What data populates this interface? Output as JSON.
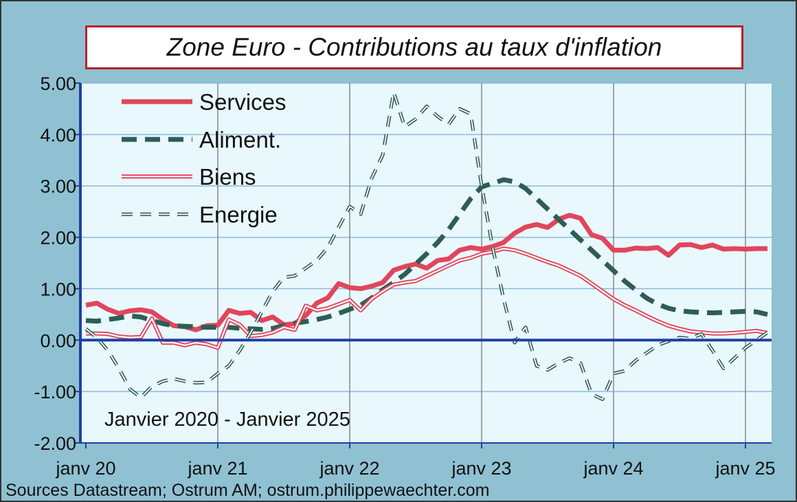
{
  "title": "Zone Euro - Contributions au taux d'inflation",
  "note": "Janvier 2020 - Janvier 2025",
  "source": "Sources Datastream; Ostrum AM; ostrum.philippewaechter.com",
  "colors": {
    "background": "#8fc1d2",
    "plot_bg": "#e8f8fc",
    "services": "#e0465c",
    "aliment": "#2e5d55",
    "biens": "#e0465c",
    "energie": "#2e5d55",
    "axis": "#1f3fa3",
    "grid_h": "#8fb8d8",
    "grid_v": "#888888"
  },
  "chart_data": {
    "type": "line",
    "title": "Zone Euro - Contributions au taux d'inflation",
    "xlabel": "",
    "ylabel": "",
    "ylim": [
      -2,
      5
    ],
    "yticks": [
      "5.00",
      "4.00",
      "3.00",
      "2.00",
      "1.00",
      "0.00",
      "-1.00",
      "-2.00"
    ],
    "xticks": [
      "janv 20",
      "janv 21",
      "janv 22",
      "janv 23",
      "janv 24",
      "janv 25"
    ],
    "x_start": "2020-01",
    "grid": true,
    "legend_position": "top-left",
    "series": [
      {
        "name": "Services",
        "style": "thick-solid",
        "values": [
          0.68,
          0.72,
          0.6,
          0.52,
          0.57,
          0.59,
          0.55,
          0.4,
          0.28,
          0.26,
          0.2,
          0.28,
          0.29,
          0.58,
          0.52,
          0.54,
          0.38,
          0.45,
          0.3,
          0.32,
          0.48,
          0.72,
          0.82,
          1.1,
          1.02,
          1.0,
          1.05,
          1.12,
          1.36,
          1.43,
          1.48,
          1.4,
          1.55,
          1.58,
          1.75,
          1.8,
          1.77,
          1.82,
          1.9,
          2.08,
          2.2,
          2.25,
          2.19,
          2.35,
          2.43,
          2.37,
          2.05,
          1.98,
          1.75,
          1.75,
          1.79,
          1.78,
          1.8,
          1.65,
          1.85,
          1.86,
          1.8,
          1.85,
          1.77,
          1.78,
          1.77,
          1.78,
          1.78
        ]
      },
      {
        "name": "Aliment.",
        "style": "thick-dashed",
        "values": [
          0.38,
          0.37,
          0.4,
          0.43,
          0.47,
          0.45,
          0.38,
          0.32,
          0.28,
          0.27,
          0.26,
          0.25,
          0.25,
          0.25,
          0.23,
          0.22,
          0.21,
          0.23,
          0.28,
          0.33,
          0.36,
          0.4,
          0.45,
          0.52,
          0.6,
          0.68,
          0.82,
          0.98,
          1.12,
          1.28,
          1.48,
          1.68,
          1.9,
          2.15,
          2.45,
          2.75,
          2.98,
          3.05,
          3.12,
          3.08,
          2.95,
          2.75,
          2.55,
          2.35,
          2.15,
          1.95,
          1.75,
          1.55,
          1.35,
          1.15,
          0.98,
          0.82,
          0.7,
          0.62,
          0.57,
          0.55,
          0.54,
          0.53,
          0.54,
          0.55,
          0.56,
          0.55,
          0.5
        ]
      },
      {
        "name": "Biens",
        "style": "double-thin",
        "values": [
          0.13,
          0.13,
          0.12,
          0.07,
          0.05,
          0.06,
          0.42,
          -0.05,
          -0.05,
          -0.1,
          -0.05,
          -0.08,
          -0.15,
          0.4,
          0.3,
          0.08,
          0.1,
          0.15,
          0.25,
          0.2,
          0.67,
          0.58,
          0.62,
          0.7,
          0.78,
          0.58,
          0.8,
          0.95,
          1.08,
          1.12,
          1.15,
          1.25,
          1.35,
          1.45,
          1.55,
          1.6,
          1.68,
          1.72,
          1.78,
          1.75,
          1.68,
          1.6,
          1.52,
          1.45,
          1.35,
          1.25,
          1.1,
          0.95,
          0.8,
          0.68,
          0.58,
          0.47,
          0.37,
          0.28,
          0.22,
          0.17,
          0.15,
          0.13,
          0.13,
          0.14,
          0.16,
          0.18,
          0.14
        ]
      },
      {
        "name": "Energie",
        "style": "thin-dashed-double",
        "values": [
          0.22,
          0.05,
          -0.2,
          -0.55,
          -0.95,
          -1.12,
          -0.9,
          -0.8,
          -0.75,
          -0.8,
          -0.83,
          -0.82,
          -0.65,
          -0.5,
          -0.2,
          0.15,
          0.55,
          0.95,
          1.22,
          1.25,
          1.4,
          1.55,
          1.8,
          2.2,
          2.6,
          2.45,
          3.15,
          3.6,
          4.82,
          4.15,
          4.3,
          4.55,
          4.35,
          4.2,
          4.5,
          4.4,
          3.0,
          1.8,
          0.8,
          -0.05,
          0.25,
          -0.5,
          -0.58,
          -0.45,
          -0.35,
          -0.45,
          -1.05,
          -1.15,
          -0.65,
          -0.6,
          -0.4,
          -0.25,
          -0.1,
          -0.02,
          0.05,
          0.03,
          0.12,
          -0.2,
          -0.55,
          -0.35,
          -0.15,
          0.0,
          0.15
        ]
      }
    ]
  }
}
